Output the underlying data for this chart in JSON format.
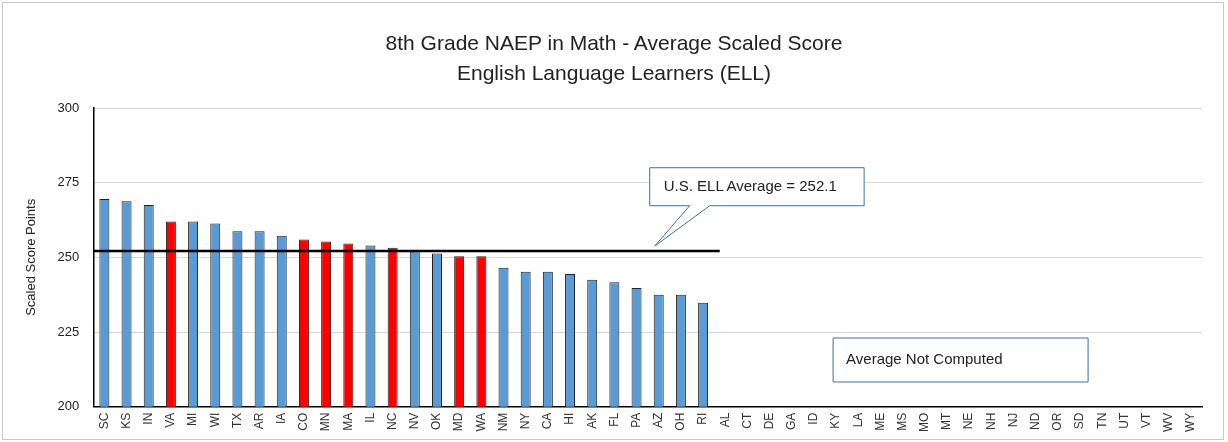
{
  "chart_data": {
    "type": "bar",
    "title": "8th Grade NAEP in Math - Average Scaled Score",
    "subtitle": "English Language Learners (ELL)",
    "ylabel": "Scaled Score Points",
    "categories": [
      "SC",
      "KS",
      "IN",
      "VA",
      "MI",
      "WI",
      "TX",
      "AR",
      "IA",
      "CO",
      "MN",
      "MA",
      "IL",
      "NC",
      "NV",
      "OK",
      "MD",
      "WA",
      "NM",
      "NY",
      "CA",
      "HI",
      "AK",
      "FL",
      "PA",
      "AZ",
      "OH",
      "RI",
      "AL",
      "CT",
      "DE",
      "GA",
      "ID",
      "KY",
      "LA",
      "ME",
      "MS",
      "MO",
      "MT",
      "NE",
      "NH",
      "NJ",
      "ND",
      "OR",
      "SD",
      "TN",
      "UT",
      "VT",
      "WV",
      "WY"
    ],
    "values": [
      269.5,
      268.8,
      267.5,
      262,
      262,
      261.3,
      258.7,
      258.7,
      257.2,
      256,
      255.3,
      254.6,
      254,
      253.2,
      252.1,
      251.3,
      250.4,
      250.4,
      246.5,
      245.2,
      245.2,
      244.4,
      242.5,
      241.7,
      239.7,
      237.5,
      237.5,
      234.8,
      null,
      null,
      null,
      null,
      null,
      null,
      null,
      null,
      null,
      null,
      null,
      null,
      null,
      null,
      null,
      null,
      null,
      null,
      null,
      null,
      null,
      null
    ],
    "colors": [
      "#5b9bd5",
      "#5b9bd5",
      "#5b9bd5",
      "#ff0000",
      "#5b9bd5",
      "#5b9bd5",
      "#5b9bd5",
      "#5b9bd5",
      "#5b9bd5",
      "#ff0000",
      "#ff0000",
      "#ff0000",
      "#5b9bd5",
      "#ff0000",
      "#5b9bd5",
      "#5b9bd5",
      "#ff0000",
      "#ff0000",
      "#5b9bd5",
      "#5b9bd5",
      "#5b9bd5",
      "#5b9bd5",
      "#5b9bd5",
      "#5b9bd5",
      "#5b9bd5",
      "#5b9bd5",
      "#5b9bd5",
      "#5b9bd5",
      "#5b9bd5",
      "#5b9bd5",
      "#5b9bd5",
      "#5b9bd5",
      "#5b9bd5",
      "#5b9bd5",
      "#5b9bd5",
      "#5b9bd5",
      "#5b9bd5",
      "#5b9bd5",
      "#5b9bd5",
      "#5b9bd5",
      "#5b9bd5",
      "#5b9bd5",
      "#5b9bd5",
      "#5b9bd5",
      "#5b9bd5",
      "#5b9bd5",
      "#5b9bd5",
      "#5b9bd5",
      "#5b9bd5",
      "#5b9bd5"
    ],
    "ylim": [
      200,
      300
    ],
    "yticks": [
      200,
      225,
      250,
      275,
      300
    ],
    "grid": "y",
    "ref_lines": [
      {
        "axis": "y",
        "value": 252.1,
        "label": "U.S. ELL Average = 252.1",
        "color": "#000000"
      }
    ],
    "annotations": [
      "Average Not Computed"
    ]
  }
}
